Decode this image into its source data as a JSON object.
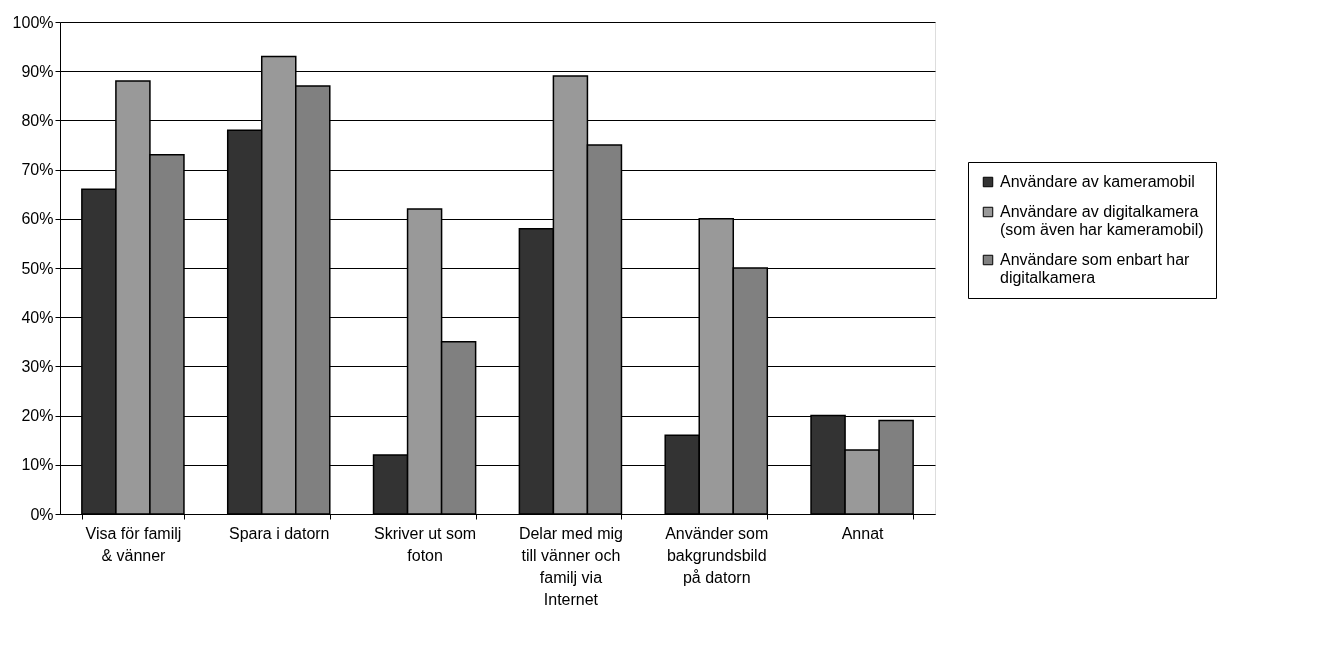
{
  "chart_data": {
    "type": "bar",
    "categories": [
      "Visa för familj & vänner",
      "Spara i datorn",
      "Skriver ut som foton",
      "Delar med mig till vänner och familj via Internet",
      "Använder som bakgrundsbild på datorn",
      "Annat"
    ],
    "series": [
      {
        "name": "Användare av kameramobil",
        "color": "#333333",
        "values": [
          66,
          78,
          12,
          58,
          16,
          20
        ]
      },
      {
        "name": "Användare av digitalkamera (som även har kameramobil)",
        "color": "#999999",
        "values": [
          88,
          93,
          62,
          89,
          60,
          13
        ]
      },
      {
        "name": "Användare som enbart har digitalkamera",
        "color": "#808080",
        "values": [
          73,
          87,
          35,
          75,
          50,
          19
        ]
      }
    ],
    "ylim": [
      0,
      100
    ],
    "yticks": [
      {
        "value": 0,
        "label": "0%"
      },
      {
        "value": 10,
        "label": "10%"
      },
      {
        "value": 20,
        "label": "20%"
      },
      {
        "value": 30,
        "label": "30%"
      },
      {
        "value": 40,
        "label": "40%"
      },
      {
        "value": 50,
        "label": "50%"
      },
      {
        "value": 60,
        "label": "60%"
      },
      {
        "value": 70,
        "label": "70%"
      },
      {
        "value": 80,
        "label": "80%"
      },
      {
        "value": 90,
        "label": "90%"
      },
      {
        "value": 100,
        "label": "100%"
      }
    ],
    "grid": "y",
    "legend": "right"
  }
}
